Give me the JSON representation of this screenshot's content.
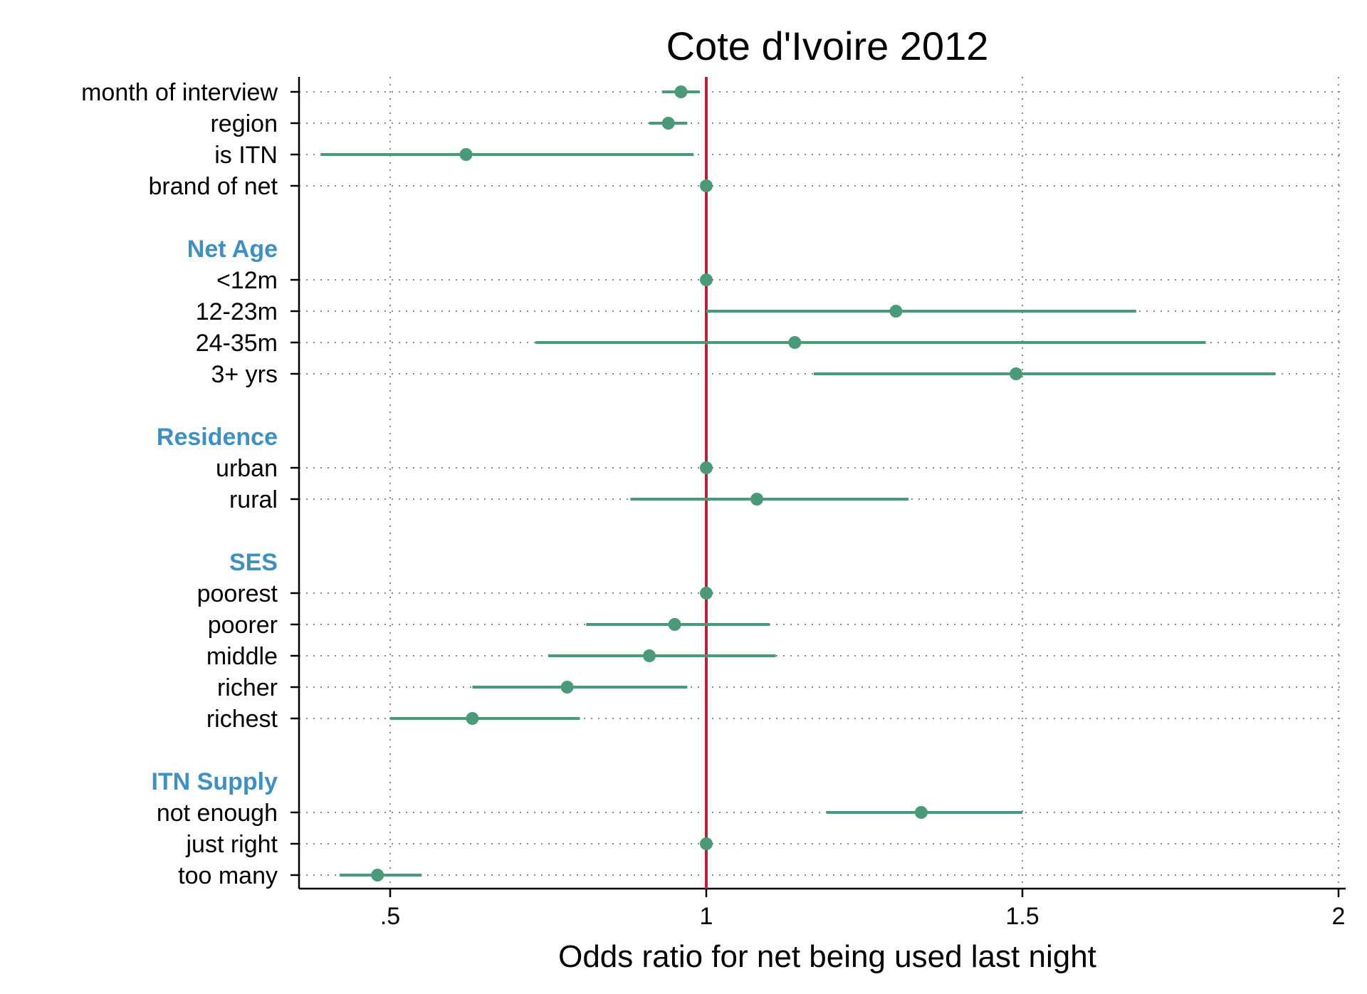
{
  "chart_data": {
    "type": "scatter",
    "subtype": "forest-plot",
    "title": "Cote d'Ivoire 2012",
    "xlabel": "Odds ratio for net being used last night",
    "ylabel": "",
    "xlim": [
      0.36,
      2.0
    ],
    "x_ticks": [
      {
        "value": 0.5,
        "label": ".5"
      },
      {
        "value": 1.0,
        "label": "1"
      },
      {
        "value": 1.5,
        "label": "1.5"
      },
      {
        "value": 2.0,
        "label": "2"
      }
    ],
    "reference_line": 1.0,
    "grid": true,
    "colors": {
      "estimate": "#4a9a7a",
      "reference": "#b5243b",
      "group_heading": "#3f8fbf"
    },
    "rows": [
      {
        "kind": "item",
        "label": "month of interview",
        "estimate": 0.96,
        "ci": [
          0.93,
          0.99
        ]
      },
      {
        "kind": "item",
        "label": "region",
        "estimate": 0.94,
        "ci": [
          0.91,
          0.97
        ]
      },
      {
        "kind": "item",
        "label": "is ITN",
        "estimate": 0.62,
        "ci": [
          0.39,
          0.98
        ]
      },
      {
        "kind": "item",
        "label": "brand of net",
        "estimate": 1.0,
        "ci": null
      },
      {
        "kind": "spacer"
      },
      {
        "kind": "group",
        "label": "Net Age"
      },
      {
        "kind": "item",
        "label": "<12m",
        "estimate": 1.0,
        "ci": null
      },
      {
        "kind": "item",
        "label": "12-23m",
        "estimate": 1.3,
        "ci": [
          1.0,
          1.68
        ]
      },
      {
        "kind": "item",
        "label": "24-35m",
        "estimate": 1.14,
        "ci": [
          0.73,
          1.79
        ]
      },
      {
        "kind": "item",
        "label": "3+ yrs",
        "estimate": 1.49,
        "ci": [
          1.17,
          1.9
        ]
      },
      {
        "kind": "spacer"
      },
      {
        "kind": "group",
        "label": "Residence"
      },
      {
        "kind": "item",
        "label": "urban",
        "estimate": 1.0,
        "ci": null
      },
      {
        "kind": "item",
        "label": "rural",
        "estimate": 1.08,
        "ci": [
          0.88,
          1.32
        ]
      },
      {
        "kind": "spacer"
      },
      {
        "kind": "group",
        "label": "SES"
      },
      {
        "kind": "item",
        "label": "poorest",
        "estimate": 1.0,
        "ci": null
      },
      {
        "kind": "item",
        "label": "poorer",
        "estimate": 0.95,
        "ci": [
          0.81,
          1.1
        ]
      },
      {
        "kind": "item",
        "label": "middle",
        "estimate": 0.91,
        "ci": [
          0.75,
          1.11
        ]
      },
      {
        "kind": "item",
        "label": "richer",
        "estimate": 0.78,
        "ci": [
          0.63,
          0.97
        ]
      },
      {
        "kind": "item",
        "label": "richest",
        "estimate": 0.63,
        "ci": [
          0.5,
          0.8
        ]
      },
      {
        "kind": "spacer"
      },
      {
        "kind": "group",
        "label": "ITN Supply"
      },
      {
        "kind": "item",
        "label": "not enough",
        "estimate": 1.34,
        "ci": [
          1.19,
          1.5
        ]
      },
      {
        "kind": "item",
        "label": "just right",
        "estimate": 1.0,
        "ci": null
      },
      {
        "kind": "item",
        "label": "too many",
        "estimate": 0.48,
        "ci": [
          0.42,
          0.55
        ]
      }
    ]
  }
}
